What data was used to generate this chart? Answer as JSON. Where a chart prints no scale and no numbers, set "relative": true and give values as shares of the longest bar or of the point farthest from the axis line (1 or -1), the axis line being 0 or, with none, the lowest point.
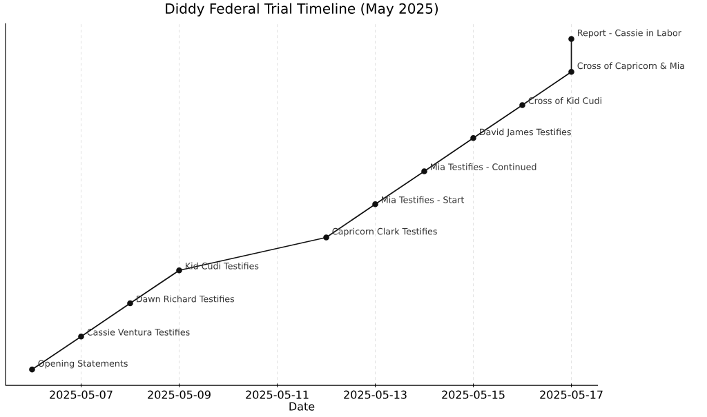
{
  "chart_data": {
    "type": "line",
    "title": "Diddy Federal Trial Timeline (May 2025)",
    "xlabel": "Date",
    "x": [
      "2025-05-06",
      "2025-05-07",
      "2025-05-08",
      "2025-05-09",
      "2025-05-12",
      "2025-05-13",
      "2025-05-14",
      "2025-05-15",
      "2025-05-16",
      "2025-05-17",
      "2025-05-17"
    ],
    "series": [
      {
        "color": "#111111",
        "values": [
          0.046,
          0.141,
          0.237,
          0.332,
          0.427,
          0.523,
          0.618,
          0.714,
          0.809,
          0.905,
          1
        ]
      }
    ],
    "relative": true,
    "xlim": [
      "2025-05-05T11:00",
      "2025-05-17T13:00"
    ],
    "xticks": [
      "2025-05-07",
      "2025-05-09",
      "2025-05-11",
      "2025-05-13",
      "2025-05-15",
      "2025-05-17"
    ],
    "grid": "x",
    "marker": "circle",
    "line_style": "solid",
    "annotations": [
      {
        "text": "Opening Statements",
        "x": "2025-05-06",
        "y": 0.046
      },
      {
        "text": "Cassie Ventura Testifies",
        "x": "2025-05-07",
        "y": 0.141
      },
      {
        "text": "Dawn Richard Testifies",
        "x": "2025-05-08",
        "y": 0.237
      },
      {
        "text": "Kid Cudi Testifies",
        "x": "2025-05-09",
        "y": 0.332
      },
      {
        "text": "Capricorn Clark Testifies",
        "x": "2025-05-12",
        "y": 0.427
      },
      {
        "text": "Mia Testifies - Start",
        "x": "2025-05-13",
        "y": 0.523
      },
      {
        "text": "Mia Testifies - Continued",
        "x": "2025-05-14",
        "y": 0.618
      },
      {
        "text": "David James Testifies",
        "x": "2025-05-15",
        "y": 0.714
      },
      {
        "text": "Cross of Kid Cudi",
        "x": "2025-05-16",
        "y": 0.809
      },
      {
        "text": "Cross of Capricorn & Mia",
        "x": "2025-05-17",
        "y": 0.905
      },
      {
        "text": "Report - Cassie in Labor",
        "x": "2025-05-17",
        "y": 1
      }
    ]
  }
}
